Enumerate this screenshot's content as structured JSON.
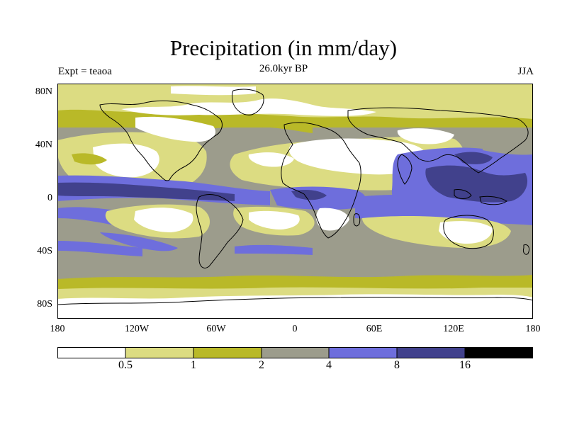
{
  "title": "Precipitation (in mm/day)",
  "subtitle": "26.0kyr BP",
  "left_label": "Expt = teaoa",
  "right_label": "JJA",
  "lat_ticks": [
    "80N",
    "40N",
    "0",
    "40S",
    "80S"
  ],
  "lon_ticks": [
    "180",
    "120W",
    "60W",
    "0",
    "60E",
    "120E",
    "180"
  ],
  "colorbar": {
    "labels": [
      "0.5",
      "1",
      "2",
      "4",
      "8",
      "16"
    ],
    "colors": [
      "#ffffff",
      "#dcdc82",
      "#b9b928",
      "#9c9c8c",
      "#6e6edc",
      "#41418c",
      "#000000"
    ]
  },
  "colors": {
    "white": "#ffffff",
    "pale": "#dcdc82",
    "olive": "#b9b928",
    "grey": "#9c9c8c",
    "blue": "#6e6edc",
    "navy": "#41418c",
    "coast": "#000000"
  }
}
